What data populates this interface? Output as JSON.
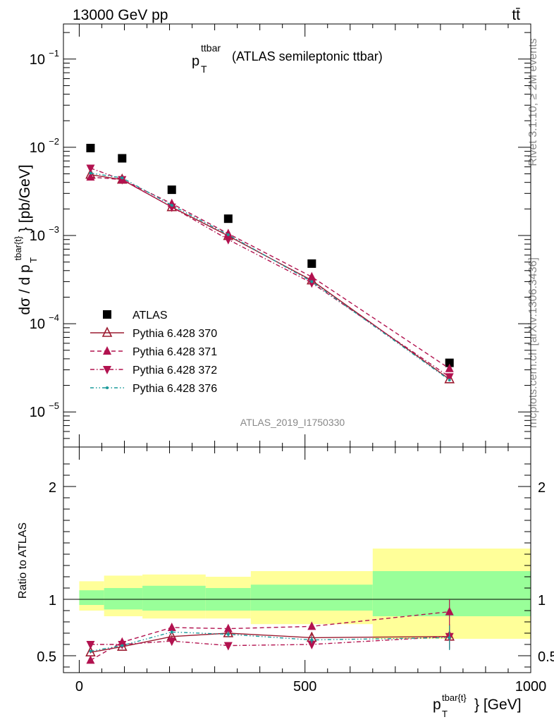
{
  "header": {
    "left": "13000 GeV pp",
    "right": "tt̄"
  },
  "side_labels": {
    "rivet": "Rivet 3.1.10, ≥ 2M events",
    "mcplots": "mcplots.cern.ch [arXiv:1306.3436]"
  },
  "chart_data": [
    {
      "type": "scatter",
      "panel": "main",
      "title": "p_T^{ttbar} (ATLAS semileptonic ttbar)",
      "title_parts": {
        "p": "p",
        "sup": "ttbar",
        "sub": "T",
        "rest": "(ATLAS semileptonic ttbar)"
      },
      "watermark": "ATLAS_2019_I1750330",
      "ylabel": "dσ / d p_T^{tbar{t}} [pb/GeV]",
      "ylabel_parts": {
        "pre": "dσ / d p",
        "sup": "tbar{t}",
        "sub": "T",
        "post": "} [pb/GeV]"
      },
      "yscale": "log",
      "ylim": [
        4e-06,
        0.25
      ],
      "xlim": [
        -35,
        1000
      ],
      "yticks": [
        {
          "label": "10",
          "exp": "−1"
        },
        {
          "label": "10",
          "exp": "−2"
        },
        {
          "label": "10",
          "exp": "−3"
        },
        {
          "label": "10",
          "exp": "−4"
        },
        {
          "label": "10",
          "exp": "−5"
        }
      ],
      "ytick_values": [
        0.1,
        0.01,
        0.001,
        0.0001,
        1e-05
      ],
      "x": [
        25,
        95,
        205,
        330,
        515,
        820
      ],
      "series": [
        {
          "name": "ATLAS",
          "color": "#000000",
          "marker": "square",
          "line": "none",
          "values": [
            0.0098,
            0.0075,
            0.0033,
            0.00155,
            0.00048,
            3.6e-05
          ]
        },
        {
          "name": "Pythia 6.428 370",
          "color": "#9b1b30",
          "marker": "triangle-up-open",
          "line": "solid",
          "values": [
            0.0049,
            0.0043,
            0.0021,
            0.00099,
            0.00031,
            2.35e-05
          ]
        },
        {
          "name": "Pythia 6.428 371",
          "color": "#b2124f",
          "marker": "triangle-up",
          "line": "dashed",
          "values": [
            0.0046,
            0.0043,
            0.0023,
            0.00105,
            0.00034,
            3.1e-05
          ]
        },
        {
          "name": "Pythia 6.428 372",
          "color": "#b2124f",
          "marker": "triangle-down",
          "line": "dashdot",
          "values": [
            0.0058,
            0.0043,
            0.0021,
            0.0009,
            0.00029,
            2.5e-05
          ]
        },
        {
          "name": "Pythia 6.428 376",
          "color": "#1a9a9a",
          "marker": "dot",
          "line": "dashdotdot",
          "values": [
            0.0051,
            0.0045,
            0.0022,
            0.00102,
            0.0003,
            2.3e-05
          ]
        }
      ]
    },
    {
      "type": "line",
      "panel": "ratio",
      "ylabel": "Ratio to ATLAS",
      "ylim": [
        0.35,
        2.35
      ],
      "yticks": [
        "0.5",
        "1",
        "2"
      ],
      "ytick_values": [
        0.5,
        1,
        2
      ],
      "xlabel": "p_T^{tbar{t}} [GeV]",
      "xlabel_parts": {
        "pre": "p",
        "sup": "tbar{t}",
        "sub": "T",
        "post": "} [GeV]"
      },
      "xticks": [
        "0",
        "500",
        "1000"
      ],
      "xtick_values": [
        0,
        500,
        1000
      ],
      "x": [
        25,
        95,
        205,
        330,
        515,
        820
      ],
      "bands": {
        "bin_edges": [
          0,
          55,
          140,
          280,
          380,
          650,
          1000
        ],
        "green": [
          [
            0.95,
            1.08
          ],
          [
            0.91,
            1.1
          ],
          [
            0.9,
            1.12
          ],
          [
            0.9,
            1.1
          ],
          [
            0.9,
            1.13
          ],
          [
            0.85,
            1.25
          ]
        ],
        "yellow": [
          [
            0.9,
            1.16
          ],
          [
            0.85,
            1.21
          ],
          [
            0.83,
            1.22
          ],
          [
            0.83,
            1.2
          ],
          [
            0.78,
            1.25
          ],
          [
            0.65,
            1.45
          ]
        ]
      },
      "series": [
        {
          "name": "Pythia 6.428 370",
          "values": [
            0.53,
            0.58,
            0.67,
            0.7,
            0.66,
            0.67
          ]
        },
        {
          "name": "Pythia 6.428 371",
          "values": [
            0.46,
            0.62,
            0.75,
            0.74,
            0.76,
            0.89
          ]
        },
        {
          "name": "Pythia 6.428 372",
          "values": [
            0.6,
            0.6,
            0.63,
            0.59,
            0.6,
            0.67
          ]
        },
        {
          "name": "Pythia 6.428 376",
          "values": [
            0.54,
            0.59,
            0.71,
            0.69,
            0.64,
            0.66
          ]
        }
      ],
      "errors": [
        0.01,
        0.01,
        0.015,
        0.025,
        0.03,
        0.11
      ]
    }
  ]
}
